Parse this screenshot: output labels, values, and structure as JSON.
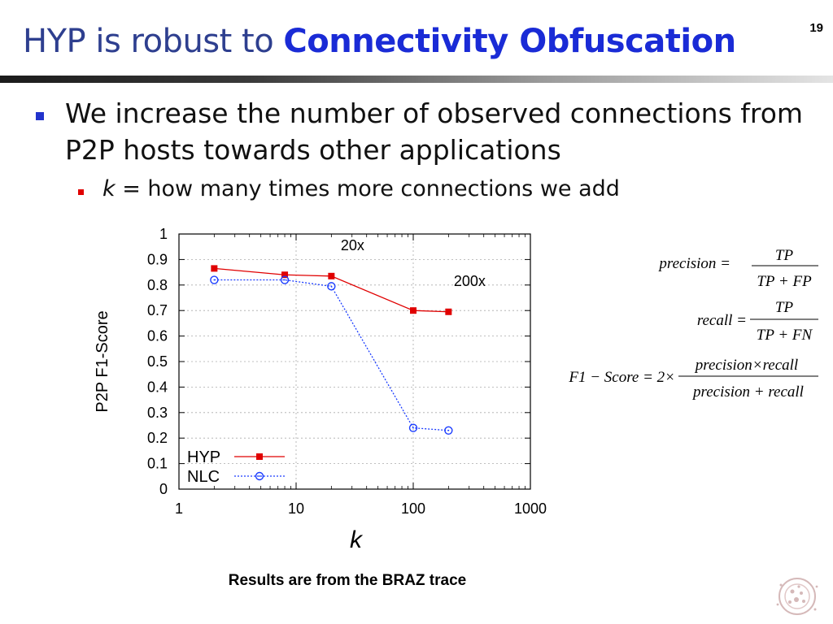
{
  "slide": {
    "number": "19",
    "title_normal": "HYP is robust to ",
    "title_bold": "Connectivity Obfuscation",
    "bullet1": "We increase the number of observed connections from P2P hosts towards other applications",
    "bullet2_var": "k",
    "bullet2_rest": " = how many times more connections we add",
    "caption": "Results are from the BRAZ trace",
    "formulas": {
      "precision_lhs": "precision =",
      "precision_num": "TP",
      "precision_den": "TP + FP",
      "recall_lhs": "recall =",
      "recall_num": "TP",
      "recall_den": "TP + FN",
      "f1_lhs": "F1 − Score = 2×",
      "f1_num": "precision×recall",
      "f1_den": "precision + recall"
    },
    "colors": {
      "title": "#2e3f8f",
      "title_bold": "#1a2bd6",
      "bullet1_marker": "#2233cc",
      "bullet2_marker": "#e00000"
    }
  },
  "chart_data": {
    "type": "line",
    "xlabel": "k",
    "ylabel": "P2P F1-Score",
    "xscale": "log",
    "xlim": [
      1,
      1000
    ],
    "ylim": [
      0,
      1
    ],
    "x_ticks": [
      "1",
      "10",
      "100",
      "1000"
    ],
    "y_ticks": [
      "0",
      "0.1",
      "0.2",
      "0.3",
      "0.4",
      "0.5",
      "0.6",
      "0.7",
      "0.8",
      "0.9",
      "1"
    ],
    "legend_position": "bottom-left",
    "series": [
      {
        "name": "HYP",
        "color": "#e00000",
        "marker": "filled-square",
        "line": "solid",
        "points": [
          [
            2,
            0.865
          ],
          [
            8,
            0.84
          ],
          [
            20,
            0.835
          ],
          [
            100,
            0.7
          ],
          [
            200,
            0.695
          ]
        ]
      },
      {
        "name": "NLC",
        "color": "#1a3cff",
        "marker": "open-circle",
        "line": "dotted",
        "points": [
          [
            2,
            0.82
          ],
          [
            8,
            0.82
          ],
          [
            20,
            0.795
          ],
          [
            100,
            0.24
          ],
          [
            200,
            0.23
          ]
        ]
      }
    ],
    "annotations": [
      {
        "text": "20x",
        "x": 20,
        "y": 0.835
      },
      {
        "text": "200x",
        "x": 200,
        "y": 0.695
      }
    ]
  }
}
